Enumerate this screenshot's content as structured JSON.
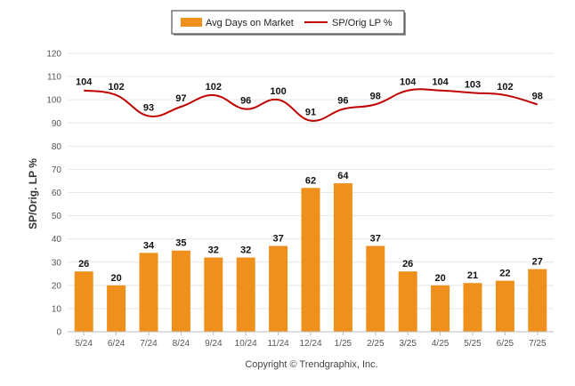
{
  "chart_data": {
    "type": "bar",
    "categories": [
      "5/24",
      "6/24",
      "7/24",
      "8/24",
      "9/24",
      "10/24",
      "11/24",
      "12/24",
      "1/25",
      "2/25",
      "3/25",
      "4/25",
      "5/25",
      "6/25",
      "7/25"
    ],
    "series": [
      {
        "name": "Avg Days on Market",
        "type": "bar",
        "color": "#f0901c",
        "values": [
          26,
          20,
          34,
          35,
          32,
          32,
          37,
          62,
          64,
          37,
          26,
          20,
          21,
          22,
          27
        ]
      },
      {
        "name": "SP/Orig LP %",
        "type": "line",
        "color": "#c00000",
        "values": [
          104,
          102,
          93,
          97,
          102,
          96,
          100,
          91,
          96,
          98,
          104,
          104,
          103,
          102,
          98
        ]
      }
    ],
    "ylabel": "SP/Orig. LP %",
    "ylim": [
      0,
      120
    ],
    "yticks": [
      0,
      10,
      20,
      30,
      40,
      50,
      60,
      70,
      80,
      90,
      100,
      110,
      120
    ],
    "grid": true,
    "legend_position": "top-center",
    "footer": "Copyright © Trendgraphix, Inc."
  }
}
